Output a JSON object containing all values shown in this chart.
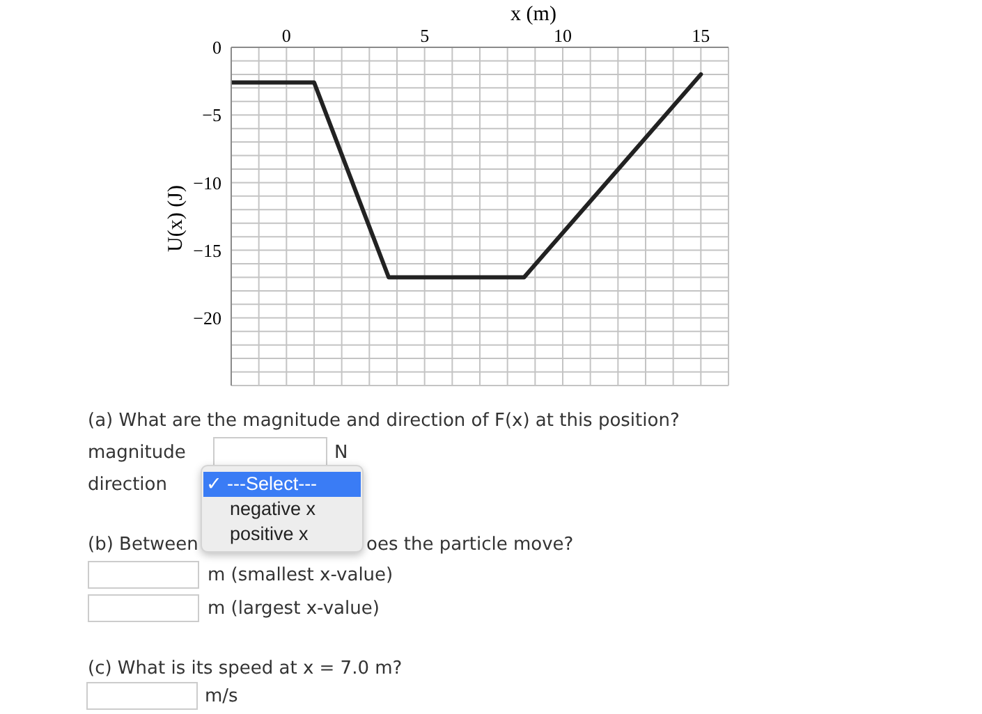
{
  "chart_data": {
    "type": "line",
    "xlabel": "x (m)",
    "ylabel": "U(x) (J)",
    "x": [
      -2,
      1,
      3.7,
      8.6,
      15
    ],
    "values": [
      -2.6,
      -2.6,
      -17,
      -17,
      -2
    ],
    "color": "#222222",
    "line_style": "solid",
    "xlim": [
      -2,
      16
    ],
    "xticks": [
      {
        "value": -2,
        "label": null
      },
      {
        "value": -1,
        "label": null
      },
      0,
      {
        "value": 1,
        "label": null
      },
      {
        "value": 2,
        "label": null
      },
      {
        "value": 3,
        "label": null
      },
      {
        "value": 4,
        "label": null
      },
      5,
      {
        "value": 6,
        "label": null
      },
      {
        "value": 7,
        "label": null
      },
      {
        "value": 8,
        "label": null
      },
      {
        "value": 9,
        "label": null
      },
      10,
      {
        "value": 11,
        "label": null
      },
      {
        "value": 12,
        "label": null
      },
      {
        "value": 13,
        "label": null
      },
      {
        "value": 14,
        "label": null
      },
      15,
      {
        "value": 16,
        "label": null
      }
    ],
    "ylim": [
      -25,
      0
    ],
    "yticks": [
      0,
      {
        "value": -1,
        "label": null
      },
      {
        "value": -2,
        "label": null
      },
      {
        "value": -3,
        "label": null
      },
      {
        "value": -4,
        "label": null
      },
      -5,
      {
        "value": -6,
        "label": null
      },
      {
        "value": -7,
        "label": null
      },
      {
        "value": -8,
        "label": null
      },
      {
        "value": -9,
        "label": null
      },
      -10,
      {
        "value": -11,
        "label": null
      },
      {
        "value": -12,
        "label": null
      },
      {
        "value": -13,
        "label": null
      },
      {
        "value": -14,
        "label": null
      },
      -15,
      {
        "value": -16,
        "label": null
      },
      {
        "value": -17,
        "label": null
      },
      {
        "value": -18,
        "label": null
      },
      {
        "value": -19,
        "label": null
      },
      -20,
      {
        "value": -21,
        "label": null
      },
      {
        "value": -22,
        "label": null
      },
      {
        "value": -23,
        "label": null
      },
      {
        "value": -24,
        "label": null
      },
      {
        "value": -25,
        "label": null
      }
    ],
    "grid": true,
    "annotations": [
      "(a) What are the magnitude and direction of F(x) at this position?",
      "magnitude",
      "N",
      "direction",
      "✓ ---Select---",
      "negative x",
      "positive x",
      "(b) Between",
      "oes the particle move?",
      "m (smallest x-value)",
      "m (largest x-value)",
      "(c) What is its speed at x = 7.0 m?",
      "m/s"
    ]
  }
}
